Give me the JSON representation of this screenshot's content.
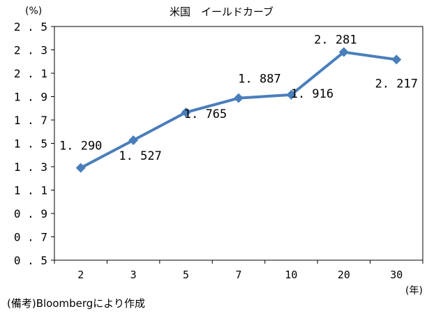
{
  "chart_data": {
    "type": "line",
    "title": "米国　イールドカーブ",
    "ylabel": "(%)",
    "xlabel": "(年)",
    "categories": [
      "2",
      "3",
      "5",
      "7",
      "10",
      "20",
      "30"
    ],
    "series": [
      {
        "values": [
          1.29,
          1.527,
          1.765,
          1.887,
          1.916,
          2.281,
          2.217
        ]
      }
    ],
    "data_labels": [
      "1.290",
      "1.527",
      "1.765",
      "1.887",
      "1.916",
      "2.281",
      "2.217"
    ],
    "yticks": [
      "0.5",
      "0.7",
      "0.9",
      "1.1",
      "1.3",
      "1.5",
      "1.7",
      "1.9",
      "2.1",
      "2.3",
      "2.5"
    ],
    "ylim": [
      0.5,
      2.5
    ],
    "grid": false,
    "legend": "none",
    "line_color": "#4a7ebb",
    "marker": "diamond"
  },
  "note": "(備考)Bloombergにより作成"
}
